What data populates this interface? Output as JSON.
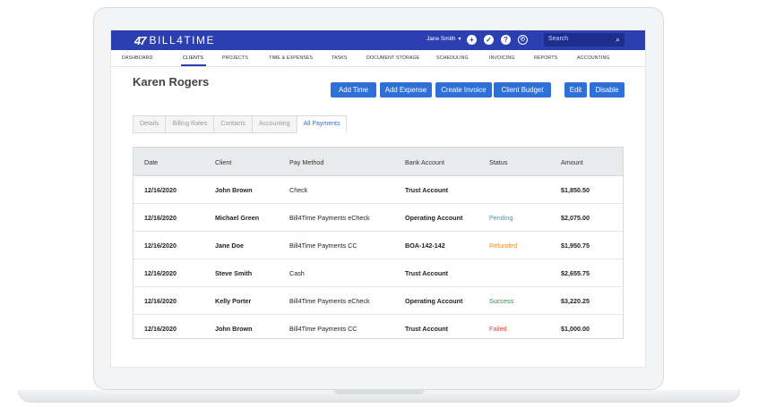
{
  "brand": {
    "mark": "47",
    "name": "BILL4TIME"
  },
  "header": {
    "user": "Jane Smith",
    "search_placeholder": "Search",
    "icons": [
      "plus-circle-icon",
      "check-circle-icon",
      "help-icon",
      "clock-icon",
      "search-icon"
    ]
  },
  "nav": [
    "DASHBOARD",
    "CLIENTS",
    "PROJECTS",
    "TIME & EXPENSES",
    "TASKS",
    "DOCUMENT STORAGE",
    "SCHEDULING",
    "INVOICING",
    "REPORTS",
    "ACCOUNTING"
  ],
  "nav_active": "CLIENTS",
  "client": {
    "name": "Karen Rogers"
  },
  "actions": [
    "Add Time",
    "Add Expense",
    "Create Invoice",
    "Client Budget",
    "Edit",
    "Disable"
  ],
  "tabs": [
    "Details",
    "Billing Rates",
    "Contacts",
    "Accounting",
    "All Payments"
  ],
  "active_tab": "All Payments",
  "table": {
    "columns": [
      "Date",
      "Client",
      "Pay Method",
      "Bank Account",
      "Status",
      "Amount"
    ],
    "rows": [
      {
        "date": "12/16/2020",
        "client": "John Brown",
        "method": "Check",
        "bank": "Trust Account",
        "status": "",
        "amount": "$1,850.50"
      },
      {
        "date": "12/16/2020",
        "client": "Michael Green",
        "method": "Bill4Time Payments eCheck",
        "bank": "Operating Account",
        "status": "Pending",
        "amount": "$2,075.00"
      },
      {
        "date": "12/16/2020",
        "client": "Jane Doe",
        "method": "Bill4Time Payments CC",
        "bank": "BOA-142-142",
        "status": "Refunded",
        "amount": "$1,950.75"
      },
      {
        "date": "12/16/2020",
        "client": "Steve Smith",
        "method": "Cash",
        "bank": "Trust Account",
        "status": "",
        "amount": "$2,655.75"
      },
      {
        "date": "12/16/2020",
        "client": "Kelly Porter",
        "method": "Bill4Time Payments eCheck",
        "bank": "Operating Account",
        "status": "Success",
        "amount": "$3,220.25"
      },
      {
        "date": "12/16/2020",
        "client": "John Brown",
        "method": "Bill4Time Payments CC",
        "bank": "Trust Account",
        "status": "Failed",
        "amount": "$1,000.00"
      }
    ]
  },
  "colors": {
    "topbar": "#2b3fb0",
    "button": "#2f6fd8",
    "pending": "#2aa0c6",
    "refunded": "#f08a24",
    "success": "#2e8b3a",
    "failed": "#e03a2e"
  }
}
